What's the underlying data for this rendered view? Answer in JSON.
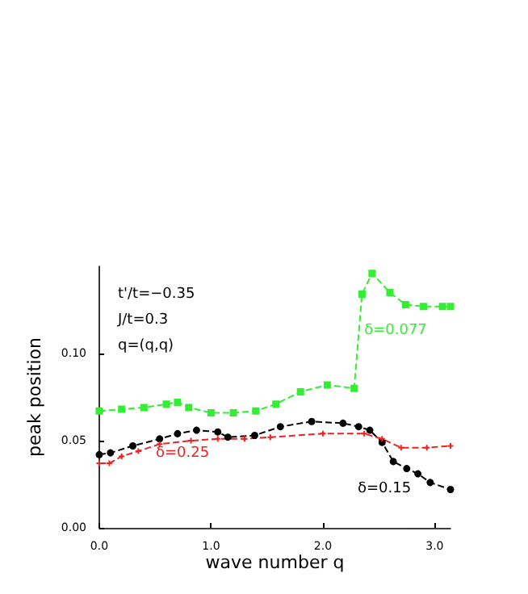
{
  "chart_data": {
    "type": "line",
    "xlabel": "wave number q",
    "ylabel": "peak position",
    "xlim": [
      0,
      3.1416
    ],
    "xticks": [
      {
        "value": 0,
        "label": "0.0"
      },
      {
        "value": 1,
        "label": "1.0"
      },
      {
        "value": 2,
        "label": "2.0"
      },
      {
        "value": 3,
        "label": "3.0"
      }
    ],
    "ylim": [
      0,
      0.15
    ],
    "yticks": [
      {
        "value": 0,
        "label": "0.00"
      },
      {
        "value": 0.05,
        "label": "0.05"
      },
      {
        "value": 0.1,
        "label": "0.10"
      }
    ],
    "grid": false,
    "legend": false,
    "line_style": "dashed",
    "annotations": [
      "t'/t=−0.35",
      "J/t=0.3",
      "q=(q,q)"
    ],
    "series": [
      {
        "name": "δ=0.077",
        "color": "#33ee33",
        "marker": "square",
        "x": [
          0,
          0.2,
          0.4,
          0.6,
          0.7,
          0.8,
          1.0,
          1.2,
          1.4,
          1.58,
          1.8,
          2.04,
          2.28,
          2.35,
          2.44,
          2.6,
          2.74,
          2.9,
          3.07,
          3.1416
        ],
        "values": [
          0.067,
          0.068,
          0.069,
          0.071,
          0.072,
          0.069,
          0.066,
          0.066,
          0.067,
          0.071,
          0.078,
          0.082,
          0.08,
          0.134,
          0.146,
          0.135,
          0.128,
          0.127,
          0.127,
          0.127
        ]
      },
      {
        "name": "δ=0.15",
        "color": "#000000",
        "marker": "circle",
        "x": [
          0,
          0.1,
          0.3,
          0.54,
          0.7,
          0.87,
          1.06,
          1.15,
          1.39,
          1.62,
          1.9,
          2.18,
          2.32,
          2.42,
          2.53,
          2.63,
          2.75,
          2.85,
          2.96,
          3.1416
        ],
        "values": [
          0.042,
          0.043,
          0.047,
          0.051,
          0.054,
          0.056,
          0.055,
          0.052,
          0.053,
          0.058,
          0.061,
          0.06,
          0.058,
          0.056,
          0.049,
          0.038,
          0.034,
          0.031,
          0.026,
          0.022
        ]
      },
      {
        "name": "δ=0.25",
        "color": "#ee2222",
        "marker": "cross",
        "x": [
          0,
          0.09,
          0.2,
          0.35,
          0.54,
          0.82,
          1.06,
          1.3,
          1.53,
          2.0,
          2.37,
          2.53,
          2.7,
          2.93,
          3.1416
        ],
        "values": [
          0.037,
          0.037,
          0.041,
          0.044,
          0.048,
          0.05,
          0.051,
          0.051,
          0.052,
          0.054,
          0.054,
          0.051,
          0.046,
          0.046,
          0.047
        ]
      }
    ]
  }
}
